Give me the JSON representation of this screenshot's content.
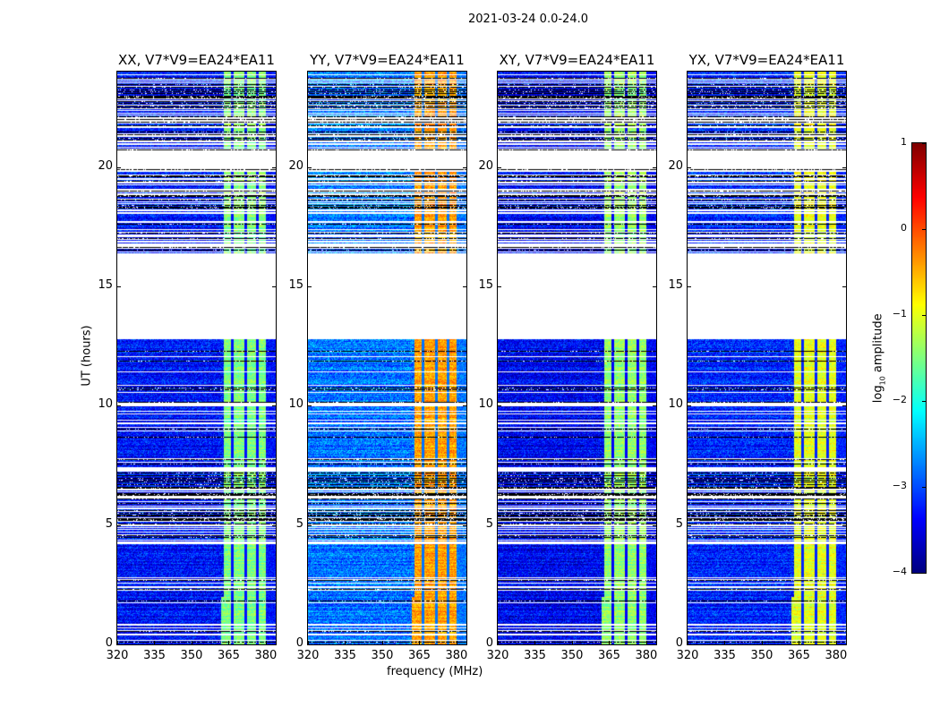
{
  "chart_data": {
    "type": "heatmap",
    "title": "2021-03-24 0.0-24.0",
    "xlabel": "frequency (MHz)",
    "ylabel": "UT (hours)",
    "xlim": [
      320,
      384
    ],
    "ylim": [
      0,
      24
    ],
    "xticks": [
      "320",
      "335",
      "350",
      "365",
      "380"
    ],
    "xtick_values": [
      320,
      335,
      350,
      365,
      380
    ],
    "yticks": [
      "0",
      "5",
      "10",
      "15",
      "20"
    ],
    "ytick_values": [
      0,
      5,
      10,
      15,
      20
    ],
    "colorbar": {
      "label": "log10 amplitude",
      "label_main": "log",
      "label_sub": "10",
      "label_rest": " amplitude",
      "range": [
        -4,
        1
      ],
      "ticks": [
        "1",
        "0",
        "−1",
        "−2",
        "−3",
        "−4"
      ],
      "tick_values": [
        1,
        0,
        -1,
        -2,
        -3,
        -4
      ],
      "colormap": "jet"
    },
    "time_segments": [
      {
        "from": 0.0,
        "to": 2.0,
        "kind": "dense",
        "band_start": 362
      },
      {
        "from": 2.0,
        "to": 4.5,
        "kind": "dense",
        "band_start": 363
      },
      {
        "from": 4.5,
        "to": 7.5,
        "kind": "sparse",
        "band_start": 363
      },
      {
        "from": 7.5,
        "to": 12.8,
        "kind": "dense",
        "band_start": 363
      },
      {
        "from": 12.8,
        "to": 16.4,
        "kind": "flagged"
      },
      {
        "from": 16.4,
        "to": 17.3,
        "kind": "sparse",
        "band_start": 363
      },
      {
        "from": 17.3,
        "to": 17.6,
        "kind": "dense",
        "band_start": 363
      },
      {
        "from": 17.6,
        "to": 19.9,
        "kind": "sparse",
        "band_start": 363
      },
      {
        "from": 19.9,
        "to": 20.7,
        "kind": "flagged"
      },
      {
        "from": 20.7,
        "to": 24.0,
        "kind": "sparse",
        "band_start": 363
      }
    ],
    "band_end_mhz": 380,
    "band_gaps_mhz": [
      366.5,
      372,
      376.5
    ],
    "panels": [
      {
        "title": "XX, V7*V9=EA24*EA11",
        "background_level": -3.3,
        "band_level": -1.5
      },
      {
        "title": "YY, V7*V9=EA24*EA11",
        "background_level": -2.8,
        "band_level": -0.4
      },
      {
        "title": "XY, V7*V9=EA24*EA11",
        "background_level": -3.4,
        "band_level": -1.4
      },
      {
        "title": "YX, V7*V9=EA24*EA11",
        "background_level": -3.2,
        "band_level": -1.0
      }
    ]
  }
}
